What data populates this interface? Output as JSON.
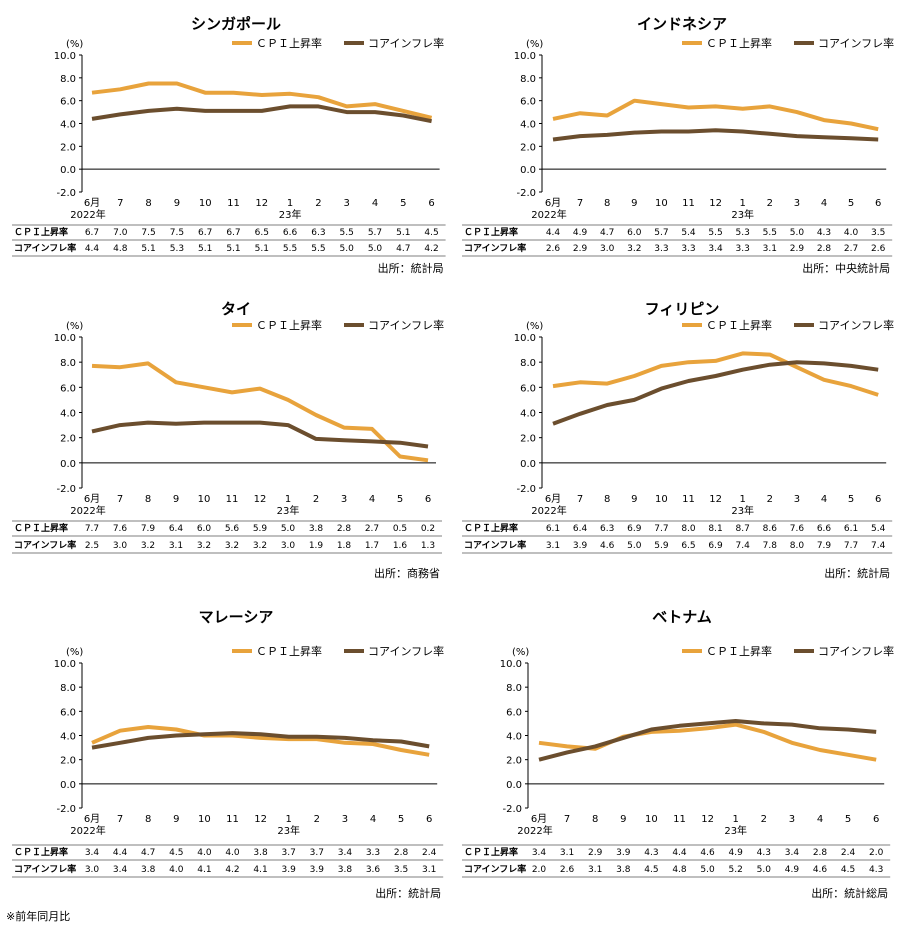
{
  "footnote": "※前年同月比",
  "charts": [
    {
      "title": "シンガポール",
      "unit": "(%)",
      "legend": [
        "ＣＰＩ上昇率",
        "コアインフレ率"
      ],
      "months": [
        "6",
        "7",
        "8",
        "9",
        "10",
        "11",
        "12",
        "1",
        "2",
        "3",
        "4",
        "5",
        "6"
      ],
      "month_first_label": "6月",
      "year1": "2022年",
      "year2": "23年",
      "row_labels": [
        "ＣＰＩ上昇率",
        "コアインフレ率"
      ],
      "source": "出所：統計局"
    },
    {
      "title": "インドネシア",
      "unit": "(%)",
      "legend": [
        "ＣＰＩ上昇率",
        "コアインフレ率"
      ],
      "months": [
        "6",
        "7",
        "8",
        "9",
        "10",
        "11",
        "12",
        "1",
        "2",
        "3",
        "4",
        "5",
        "6"
      ],
      "month_first_label": "6月",
      "year1": "2022年",
      "year2": "23年",
      "row_labels": [
        "ＣＰＩ上昇率",
        "コアインフレ率"
      ],
      "source": "出所：中央統計局"
    },
    {
      "title": "タイ",
      "unit": "(%)",
      "legend": [
        "ＣＰＩ上昇率",
        "コアインフレ率"
      ],
      "months": [
        "6",
        "7",
        "8",
        "9",
        "10",
        "11",
        "12",
        "1",
        "2",
        "3",
        "4",
        "5",
        "6"
      ],
      "month_first_label": "6月",
      "year1": "2022年",
      "year2": "23年",
      "row_labels": [
        "ＣＰＩ上昇率",
        "コアインフレ率"
      ],
      "source": "出所：商務省"
    },
    {
      "title": "フィリピン",
      "unit": "(%)",
      "legend": [
        "ＣＰＩ上昇率",
        "コアインフレ率"
      ],
      "months": [
        "6",
        "7",
        "8",
        "9",
        "10",
        "11",
        "12",
        "1",
        "2",
        "3",
        "4",
        "5",
        "6"
      ],
      "month_first_label": "6月",
      "year1": "2022年",
      "year2": "23年",
      "row_labels": [
        "ＣＰＩ上昇率",
        "コアインフレ率"
      ],
      "source": "出所：統計局"
    },
    {
      "title": "マレーシア",
      "unit": "(%)",
      "legend": [
        "ＣＰＩ上昇率",
        "コアインフレ率"
      ],
      "months": [
        "6",
        "7",
        "8",
        "9",
        "10",
        "11",
        "12",
        "1",
        "2",
        "3",
        "4",
        "5",
        "6"
      ],
      "month_first_label": "6月",
      "year1": "2022年",
      "year2": "23年",
      "row_labels": [
        "ＣＰＩ上昇率",
        "コアインフレ率"
      ],
      "source": "出所：統計局"
    },
    {
      "title": "ベトナム",
      "unit": "(%)",
      "legend": [
        "ＣＰＩ上昇率",
        "コアインフレ率"
      ],
      "months": [
        "6",
        "7",
        "8",
        "9",
        "10",
        "11",
        "12",
        "1",
        "2",
        "3",
        "4",
        "5",
        "6"
      ],
      "month_first_label": "6月",
      "year1": "2022年",
      "year2": "23年",
      "row_labels": [
        "ＣＰＩ上昇率",
        "コアインフレ率"
      ],
      "source": "出所：統計総局"
    }
  ],
  "chart_data": [
    {
      "type": "line",
      "title": "シンガポール",
      "x": [
        "2022-06",
        "2022-07",
        "2022-08",
        "2022-09",
        "2022-10",
        "2022-11",
        "2022-12",
        "2023-01",
        "2023-02",
        "2023-03",
        "2023-04",
        "2023-05",
        "2023-06"
      ],
      "ylim": [
        -2.0,
        10.0
      ],
      "yticks": [
        "10.0",
        "8.0",
        "6.0",
        "4.0",
        "2.0",
        "0.0",
        "-2.0"
      ],
      "legend_position": "top-right",
      "grid": false,
      "series": [
        {
          "name": "ＣＰＩ上昇率",
          "color": "#E8A33C",
          "values": [
            6.7,
            7.0,
            7.5,
            7.5,
            6.7,
            6.7,
            6.5,
            6.6,
            6.3,
            5.5,
            5.7,
            5.1,
            4.5
          ]
        },
        {
          "name": "コアインフレ率",
          "color": "#6B4E2E",
          "values": [
            4.4,
            4.8,
            5.1,
            5.3,
            5.1,
            5.1,
            5.1,
            5.5,
            5.5,
            5.0,
            5.0,
            4.7,
            4.2
          ]
        }
      ]
    },
    {
      "type": "line",
      "title": "インドネシア",
      "x": [
        "2022-06",
        "2022-07",
        "2022-08",
        "2022-09",
        "2022-10",
        "2022-11",
        "2022-12",
        "2023-01",
        "2023-02",
        "2023-03",
        "2023-04",
        "2023-05",
        "2023-06"
      ],
      "ylim": [
        -2.0,
        10.0
      ],
      "yticks": [
        "10.0",
        "8.0",
        "6.0",
        "4.0",
        "2.0",
        "0.0",
        "-2.0"
      ],
      "legend_position": "top-right",
      "grid": false,
      "series": [
        {
          "name": "ＣＰＩ上昇率",
          "color": "#E8A33C",
          "values": [
            4.4,
            4.9,
            4.7,
            6.0,
            5.7,
            5.4,
            5.5,
            5.3,
            5.5,
            5.0,
            4.3,
            4.0,
            3.5
          ]
        },
        {
          "name": "コアインフレ率",
          "color": "#6B4E2E",
          "values": [
            2.6,
            2.9,
            3.0,
            3.2,
            3.3,
            3.3,
            3.4,
            3.3,
            3.1,
            2.9,
            2.8,
            2.7,
            2.6
          ]
        }
      ]
    },
    {
      "type": "line",
      "title": "タイ",
      "x": [
        "2022-06",
        "2022-07",
        "2022-08",
        "2022-09",
        "2022-10",
        "2022-11",
        "2022-12",
        "2023-01",
        "2023-02",
        "2023-03",
        "2023-04",
        "2023-05",
        "2023-06"
      ],
      "ylim": [
        -2.0,
        10.0
      ],
      "yticks": [
        "10.0",
        "8.0",
        "6.0",
        "4.0",
        "2.0",
        "0.0",
        "-2.0"
      ],
      "legend_position": "top-right",
      "grid": false,
      "series": [
        {
          "name": "ＣＰＩ上昇率",
          "color": "#E8A33C",
          "values": [
            7.7,
            7.6,
            7.9,
            6.4,
            6.0,
            5.6,
            5.9,
            5.0,
            3.8,
            2.8,
            2.7,
            0.5,
            0.2
          ]
        },
        {
          "name": "コアインフレ率",
          "color": "#6B4E2E",
          "values": [
            2.5,
            3.0,
            3.2,
            3.1,
            3.2,
            3.2,
            3.2,
            3.0,
            1.9,
            1.8,
            1.7,
            1.6,
            1.3
          ]
        }
      ]
    },
    {
      "type": "line",
      "title": "フィリピン",
      "x": [
        "2022-06",
        "2022-07",
        "2022-08",
        "2022-09",
        "2022-10",
        "2022-11",
        "2022-12",
        "2023-01",
        "2023-02",
        "2023-03",
        "2023-04",
        "2023-05",
        "2023-06"
      ],
      "ylim": [
        -2.0,
        10.0
      ],
      "yticks": [
        "10.0",
        "8.0",
        "6.0",
        "4.0",
        "2.0",
        "0.0",
        "-2.0"
      ],
      "legend_position": "top-right",
      "grid": false,
      "series": [
        {
          "name": "ＣＰＩ上昇率",
          "color": "#E8A33C",
          "values": [
            6.1,
            6.4,
            6.3,
            6.9,
            7.7,
            8.0,
            8.1,
            8.7,
            8.6,
            7.6,
            6.6,
            6.1,
            5.4
          ]
        },
        {
          "name": "コアインフレ率",
          "color": "#6B4E2E",
          "values": [
            3.1,
            3.9,
            4.6,
            5.0,
            5.9,
            6.5,
            6.9,
            7.4,
            7.8,
            8.0,
            7.9,
            7.7,
            7.4
          ]
        }
      ]
    },
    {
      "type": "line",
      "title": "マレーシア",
      "x": [
        "2022-06",
        "2022-07",
        "2022-08",
        "2022-09",
        "2022-10",
        "2022-11",
        "2022-12",
        "2023-01",
        "2023-02",
        "2023-03",
        "2023-04",
        "2023-05",
        "2023-06"
      ],
      "ylim": [
        -2.0,
        10.0
      ],
      "yticks": [
        "10.0",
        "8.0",
        "6.0",
        "4.0",
        "2.0",
        "0.0",
        "-2.0"
      ],
      "legend_position": "top-right",
      "grid": false,
      "series": [
        {
          "name": "ＣＰＩ上昇率",
          "color": "#E8A33C",
          "values": [
            3.4,
            4.4,
            4.7,
            4.5,
            4.0,
            4.0,
            3.8,
            3.7,
            3.7,
            3.4,
            3.3,
            2.8,
            2.4
          ]
        },
        {
          "name": "コアインフレ率",
          "color": "#6B4E2E",
          "values": [
            3.0,
            3.4,
            3.8,
            4.0,
            4.1,
            4.2,
            4.1,
            3.9,
            3.9,
            3.8,
            3.6,
            3.5,
            3.1
          ]
        }
      ]
    },
    {
      "type": "line",
      "title": "ベトナム",
      "x": [
        "2022-06",
        "2022-07",
        "2022-08",
        "2022-09",
        "2022-10",
        "2022-11",
        "2022-12",
        "2023-01",
        "2023-02",
        "2023-03",
        "2023-04",
        "2023-05",
        "2023-06"
      ],
      "ylim": [
        -2.0,
        10.0
      ],
      "yticks": [
        "10.0",
        "8.0",
        "6.0",
        "4.0",
        "2.0",
        "0.0",
        "-2.0"
      ],
      "legend_position": "top-right",
      "grid": false,
      "series": [
        {
          "name": "ＣＰＩ上昇率",
          "color": "#E8A33C",
          "values": [
            3.4,
            3.1,
            2.9,
            3.9,
            4.3,
            4.4,
            4.6,
            4.9,
            4.3,
            3.4,
            2.8,
            2.4,
            2.0
          ]
        },
        {
          "name": "コアインフレ率",
          "color": "#6B4E2E",
          "values": [
            2.0,
            2.6,
            3.1,
            3.8,
            4.5,
            4.8,
            5.0,
            5.2,
            5.0,
            4.9,
            4.6,
            4.5,
            4.3
          ]
        }
      ]
    }
  ]
}
